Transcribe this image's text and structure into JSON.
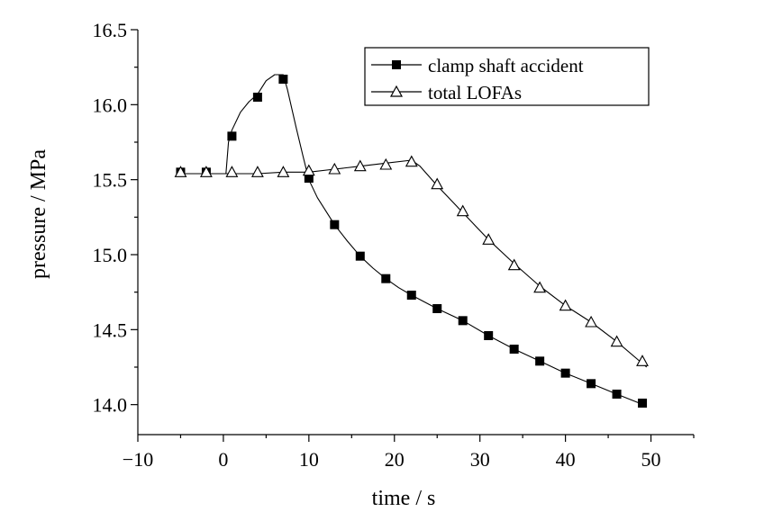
{
  "chart_data": {
    "type": "line",
    "xlabel": "time / s",
    "ylabel": "pressure / MPa",
    "xlim": [
      -10,
      55
    ],
    "ylim": [
      13.8,
      16.5
    ],
    "xticks": [
      -10,
      0,
      10,
      20,
      30,
      40,
      50
    ],
    "xtick_labels": [
      "−10",
      "0",
      "10",
      "20",
      "30",
      "40",
      "50"
    ],
    "yticks": [
      14.0,
      14.5,
      15.0,
      15.5,
      16.0,
      16.5
    ],
    "ytick_labels": [
      "14.0",
      "14.5",
      "15.0",
      "15.5",
      "16.0",
      "16.5"
    ],
    "legend_position": "top-right",
    "grid": false,
    "series": [
      {
        "name": "clamp shaft accident",
        "marker": "filled-square",
        "x": [
          -5,
          -2,
          1,
          4,
          7,
          10,
          13,
          16,
          19,
          22,
          25,
          28,
          31,
          34,
          37,
          40,
          43,
          46,
          49
        ],
        "y": [
          15.55,
          15.55,
          15.79,
          16.05,
          16.17,
          15.51,
          15.2,
          14.99,
          14.84,
          14.73,
          14.64,
          14.56,
          14.46,
          14.37,
          14.29,
          14.21,
          14.14,
          14.07,
          14.01
        ],
        "curve_x": [
          -5.5,
          -2,
          0.3,
          0.6,
          1,
          2,
          3,
          4,
          5,
          6,
          7,
          7.5,
          8.5,
          9.3,
          10,
          11,
          12,
          13,
          14.5,
          16,
          17.5,
          19,
          20.5,
          22,
          25,
          28,
          31,
          34,
          37,
          40,
          43,
          46,
          49.5
        ],
        "curve_y": [
          15.54,
          15.54,
          15.54,
          15.75,
          15.83,
          15.95,
          16.02,
          16.07,
          16.16,
          16.2,
          16.2,
          16.1,
          15.85,
          15.66,
          15.5,
          15.38,
          15.29,
          15.2,
          15.09,
          14.99,
          14.91,
          14.84,
          14.78,
          14.73,
          14.64,
          14.56,
          14.46,
          14.37,
          14.29,
          14.21,
          14.14,
          14.07,
          13.99
        ]
      },
      {
        "name": "total LOFAs",
        "marker": "open-triangle",
        "x": [
          -5,
          -2,
          1,
          4,
          7,
          10,
          13,
          16,
          19,
          22,
          25,
          28,
          31,
          34,
          37,
          40,
          43,
          46,
          49
        ],
        "y": [
          15.55,
          15.55,
          15.55,
          15.55,
          15.55,
          15.56,
          15.57,
          15.59,
          15.6,
          15.62,
          15.47,
          15.29,
          15.1,
          14.93,
          14.78,
          14.66,
          14.55,
          14.42,
          14.29
        ],
        "curve_x": [
          -5.5,
          -2,
          1,
          4,
          7,
          10,
          13,
          16,
          19,
          22,
          23,
          25,
          28,
          31,
          34,
          37,
          40,
          43,
          46,
          49.5
        ],
        "curve_y": [
          15.54,
          15.54,
          15.54,
          15.54,
          15.55,
          15.55,
          15.57,
          15.59,
          15.61,
          15.63,
          15.59,
          15.46,
          15.28,
          15.1,
          14.94,
          14.79,
          14.66,
          14.55,
          14.42,
          14.25
        ]
      }
    ]
  }
}
